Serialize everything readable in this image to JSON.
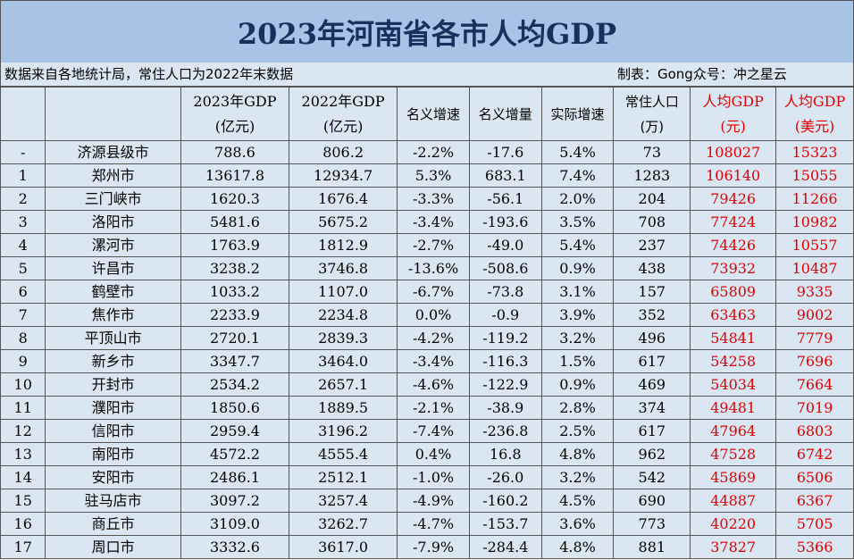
{
  "title": "2023年河南省各市人均GDP",
  "note_left": "数据来自各地统计局，常住人口为2022年末数据",
  "note_right": "制表：Gong众号：冲之星云",
  "table": {
    "header": [
      null,
      null,
      [
        "2023年GDP",
        "(亿元)"
      ],
      [
        "2022年GDP",
        "(亿元)"
      ],
      [
        "名义增速"
      ],
      [
        "名义增量"
      ],
      [
        "实际增速"
      ],
      [
        "常住人口",
        "(万)"
      ],
      [
        "人均GDP",
        "(元)"
      ],
      [
        "人均GDP",
        "(美元)"
      ]
    ],
    "rows": [
      [
        "-",
        "济源县级市",
        "788.6",
        "806.2",
        "-2.2%",
        "-17.6",
        "5.4%",
        "73",
        "108027",
        "15323"
      ],
      [
        "1",
        "郑州市",
        "13617.8",
        "12934.7",
        "5.3%",
        "683.1",
        "7.4%",
        "1283",
        "106140",
        "15055"
      ],
      [
        "2",
        "三门峡市",
        "1620.3",
        "1676.4",
        "-3.3%",
        "-56.1",
        "2.0%",
        "204",
        "79426",
        "11266"
      ],
      [
        "3",
        "洛阳市",
        "5481.6",
        "5675.2",
        "-3.4%",
        "-193.6",
        "3.5%",
        "708",
        "77424",
        "10982"
      ],
      [
        "4",
        "漯河市",
        "1763.9",
        "1812.9",
        "-2.7%",
        "-49.0",
        "5.4%",
        "237",
        "74426",
        "10557"
      ],
      [
        "5",
        "许昌市",
        "3238.2",
        "3746.8",
        "-13.6%",
        "-508.6",
        "0.9%",
        "438",
        "73932",
        "10487"
      ],
      [
        "6",
        "鹤壁市",
        "1033.2",
        "1107.0",
        "-6.7%",
        "-73.8",
        "3.1%",
        "157",
        "65809",
        "9335"
      ],
      [
        "7",
        "焦作市",
        "2233.9",
        "2234.8",
        "0.0%",
        "-0.9",
        "3.9%",
        "352",
        "63463",
        "9002"
      ],
      [
        "8",
        "平顶山市",
        "2720.1",
        "2839.3",
        "-4.2%",
        "-119.2",
        "3.2%",
        "496",
        "54841",
        "7779"
      ],
      [
        "9",
        "新乡市",
        "3347.7",
        "3464.0",
        "-3.4%",
        "-116.3",
        "1.5%",
        "617",
        "54258",
        "7696"
      ],
      [
        "10",
        "开封市",
        "2534.2",
        "2657.1",
        "-4.6%",
        "-122.9",
        "0.9%",
        "469",
        "54034",
        "7664"
      ],
      [
        "11",
        "濮阳市",
        "1850.6",
        "1889.5",
        "-2.1%",
        "-38.9",
        "2.8%",
        "374",
        "49481",
        "7019"
      ],
      [
        "12",
        "信阳市",
        "2959.4",
        "3196.2",
        "-7.4%",
        "-236.8",
        "2.5%",
        "617",
        "47964",
        "6803"
      ],
      [
        "13",
        "南阳市",
        "4572.2",
        "4555.4",
        "0.4%",
        "16.8",
        "4.8%",
        "962",
        "47528",
        "6742"
      ],
      [
        "14",
        "安阳市",
        "2486.1",
        "2512.1",
        "-1.0%",
        "-26.0",
        "3.2%",
        "542",
        "45869",
        "6506"
      ],
      [
        "15",
        "驻马店市",
        "3097.2",
        "3257.4",
        "-4.9%",
        "-160.2",
        "4.5%",
        "690",
        "44887",
        "6367"
      ],
      [
        "16",
        "商丘市",
        "3109.0",
        "3262.7",
        "-4.7%",
        "-153.7",
        "3.6%",
        "773",
        "40220",
        "5705"
      ],
      [
        "17",
        "周口市",
        "3332.6",
        "3617.0",
        "-7.9%",
        "-284.4",
        "4.8%",
        "881",
        "37827",
        "5366"
      ]
    ]
  }
}
